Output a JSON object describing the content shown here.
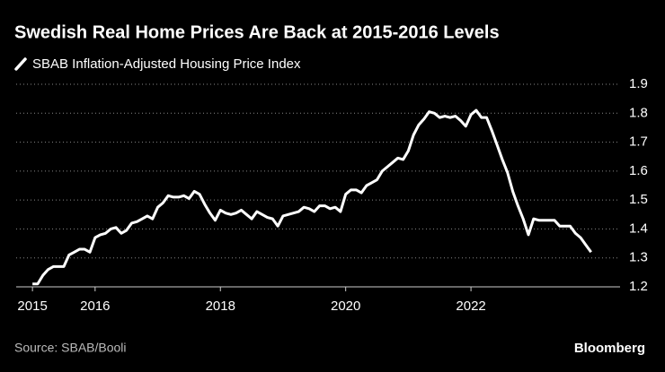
{
  "chart_data": {
    "type": "line",
    "title": "Swedish Real Home Prices Are Back at 2015-2016 Levels",
    "source": "Source: SBAB/Booli",
    "brand": "Bloomberg",
    "xlim": [
      2014.74,
      2024.38
    ],
    "xticks": [
      2015,
      2016,
      2018,
      2020,
      2022
    ],
    "ylim": [
      1.2,
      1.9
    ],
    "yticks": [
      {
        "value": 1.2,
        "label": "1.2"
      },
      1.3,
      1.4,
      1.5,
      1.6,
      1.7,
      1.8,
      1.9
    ],
    "grid": true,
    "x": [
      2015,
      2015.083,
      2015.167,
      2015.25,
      2015.333,
      2015.417,
      2015.5,
      2015.583,
      2015.667,
      2015.75,
      2015.833,
      2015.917,
      2016,
      2016.083,
      2016.167,
      2016.25,
      2016.333,
      2016.417,
      2016.5,
      2016.583,
      2016.667,
      2016.75,
      2016.833,
      2016.917,
      2017,
      2017.083,
      2017.167,
      2017.25,
      2017.333,
      2017.417,
      2017.5,
      2017.583,
      2017.667,
      2017.75,
      2017.833,
      2017.917,
      2018,
      2018.083,
      2018.167,
      2018.25,
      2018.333,
      2018.417,
      2018.5,
      2018.583,
      2018.667,
      2018.75,
      2018.833,
      2018.917,
      2019,
      2019.083,
      2019.167,
      2019.25,
      2019.333,
      2019.417,
      2019.5,
      2019.583,
      2019.667,
      2019.75,
      2019.833,
      2019.917,
      2020,
      2020.083,
      2020.167,
      2020.25,
      2020.333,
      2020.417,
      2020.5,
      2020.583,
      2020.667,
      2020.75,
      2020.833,
      2020.917,
      2021,
      2021.083,
      2021.167,
      2021.25,
      2021.333,
      2021.417,
      2021.5,
      2021.583,
      2021.667,
      2021.75,
      2021.833,
      2021.917,
      2022,
      2022.083,
      2022.167,
      2022.25,
      2022.333,
      2022.417,
      2022.5,
      2022.583,
      2022.667,
      2022.75,
      2022.833,
      2022.917,
      2023,
      2023.083,
      2023.167,
      2023.25,
      2023.333,
      2023.417,
      2023.5,
      2023.583,
      2023.667,
      2023.75,
      2023.833,
      2023.917
    ],
    "series": [
      {
        "name": "SBAB Inflation-Adjusted Housing Price Index",
        "color": "#ffffff",
        "values": [
          1.21,
          1.21,
          1.24,
          1.26,
          1.27,
          1.27,
          1.27,
          1.31,
          1.32,
          1.33,
          1.33,
          1.32,
          1.37,
          1.38,
          1.385,
          1.4,
          1.405,
          1.385,
          1.395,
          1.42,
          1.425,
          1.435,
          1.445,
          1.435,
          1.475,
          1.49,
          1.515,
          1.51,
          1.51,
          1.515,
          1.505,
          1.53,
          1.52,
          1.485,
          1.455,
          1.43,
          1.465,
          1.455,
          1.45,
          1.455,
          1.465,
          1.45,
          1.435,
          1.46,
          1.45,
          1.44,
          1.435,
          1.41,
          1.445,
          1.45,
          1.455,
          1.46,
          1.475,
          1.47,
          1.46,
          1.48,
          1.48,
          1.47,
          1.475,
          1.46,
          1.52,
          1.535,
          1.535,
          1.525,
          1.55,
          1.56,
          1.57,
          1.6,
          1.615,
          1.63,
          1.645,
          1.64,
          1.67,
          1.725,
          1.76,
          1.78,
          1.805,
          1.8,
          1.785,
          1.79,
          1.785,
          1.79,
          1.775,
          1.755,
          1.795,
          1.81,
          1.785,
          1.785,
          1.74,
          1.69,
          1.64,
          1.595,
          1.53,
          1.48,
          1.435,
          1.38,
          1.435,
          1.43,
          1.43,
          1.43,
          1.43,
          1.41,
          1.41,
          1.41,
          1.385,
          1.37,
          1.345,
          1.32
        ]
      }
    ]
  }
}
